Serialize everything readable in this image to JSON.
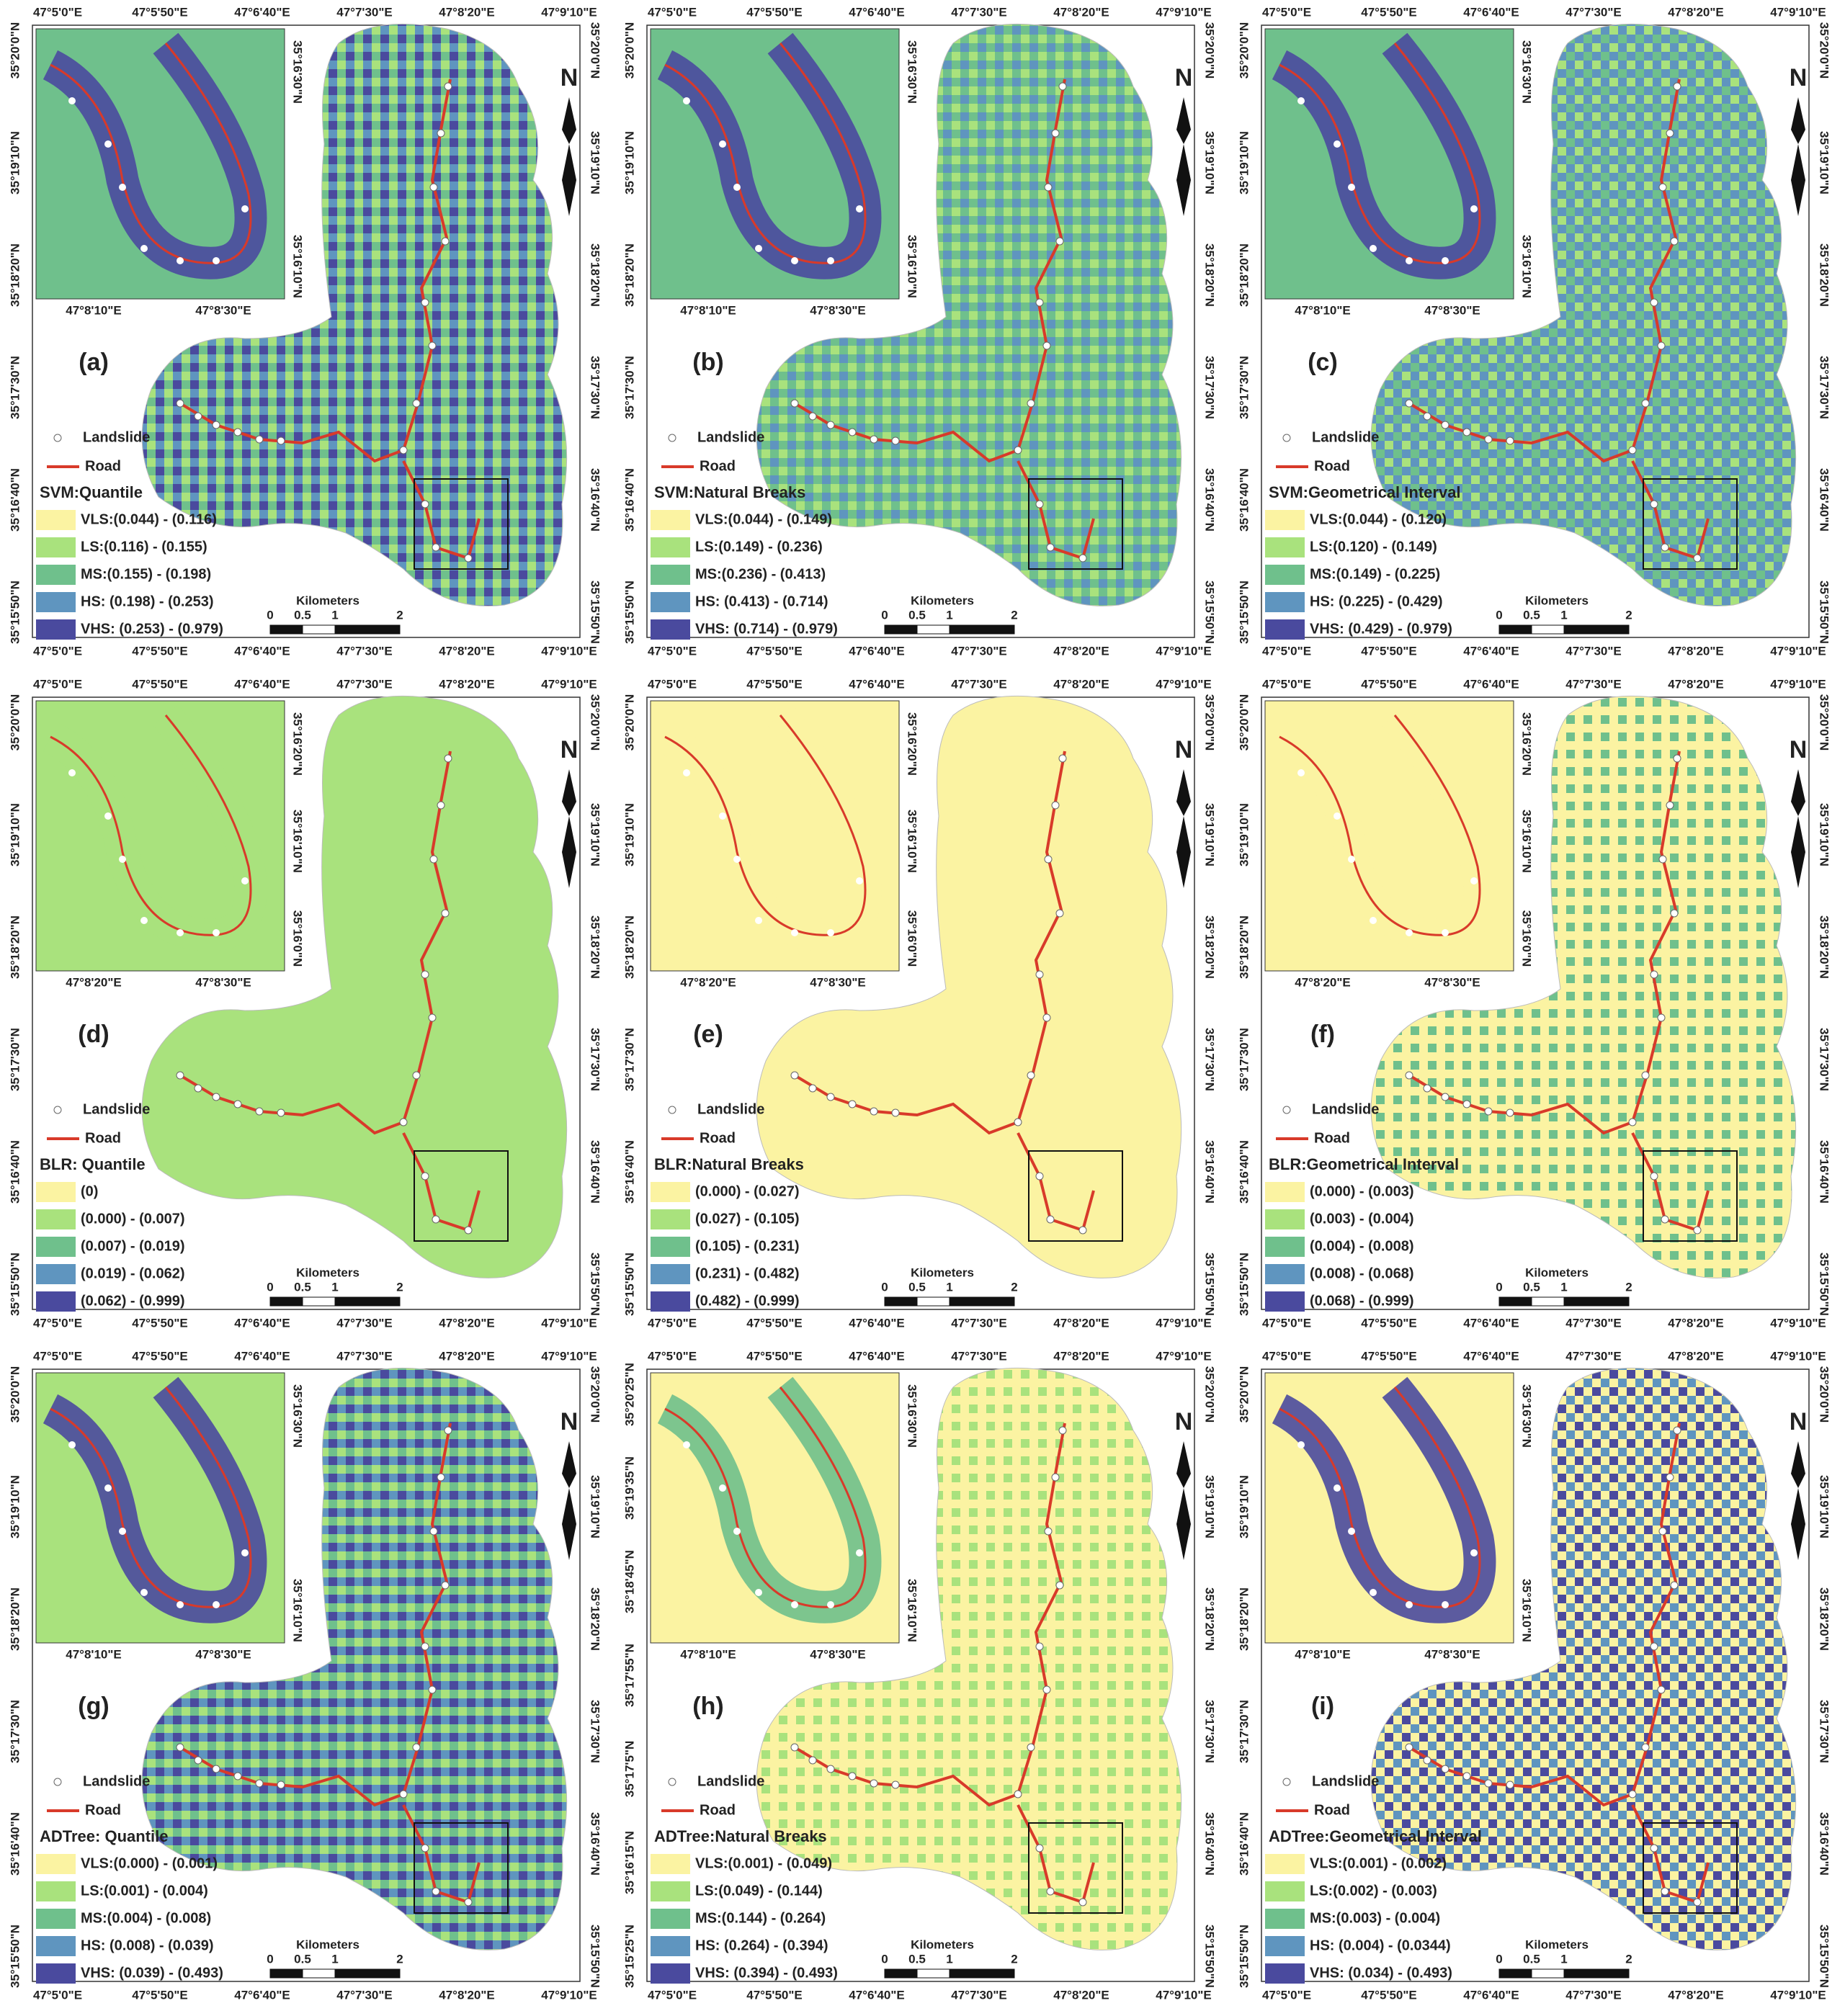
{
  "axes": {
    "x": [
      "47°5'0\"E",
      "47°5'50\"E",
      "47°6'40\"E",
      "47°7'30\"E",
      "47°8'20\"E",
      "47°9'10\"E"
    ],
    "y": [
      "35°20'0\"N",
      "35°19'10\"N",
      "35°18'20\"N",
      "35°17'30\"N",
      "35°16'40\"N",
      "35°15'50\"N"
    ]
  },
  "north": "N",
  "legend": {
    "landslide": "Landslide",
    "road": "Road"
  },
  "scale": {
    "title": "Kilometers",
    "ticks": [
      "0",
      "0.5",
      "1",
      "2"
    ]
  },
  "class_colors": [
    "#fbf3a2",
    "#a9e27d",
    "#6fc08c",
    "#5f95bf",
    "#4a4a9e"
  ],
  "panels": [
    {
      "label": "(a)",
      "title": "SVM:Quantile",
      "classes": [
        "VLS:(0.044) - (0.116)",
        "LS:(0.116) - (0.155)",
        "MS:(0.155) - (0.198)",
        "HS: (0.198) - (0.253)",
        "VHS: (0.253) - (0.979)"
      ],
      "inset_x": [
        "47°8'10\"E",
        "47°8'30\"E"
      ],
      "inset_y": [
        "35°16'30\"N",
        "35°16'10\"N"
      ]
    },
    {
      "label": "(b)",
      "title": "SVM:Natural Breaks",
      "classes": [
        "VLS:(0.044) - (0.149)",
        "LS:(0.149) - (0.236)",
        "MS:(0.236) - (0.413)",
        "HS: (0.413) - (0.714)",
        "VHS: (0.714) - (0.979)"
      ],
      "inset_x": [
        "47°8'10\"E",
        "47°8'30\"E"
      ],
      "inset_y": [
        "35°16'30\"N",
        "35°16'10\"N"
      ]
    },
    {
      "label": "(c)",
      "title": "SVM:Geometrical Interval",
      "classes": [
        "VLS:(0.044) - (0.120)",
        "LS:(0.120) - (0.149)",
        "MS:(0.149) - (0.225)",
        "HS: (0.225) - (0.429)",
        "VHS: (0.429) - (0.979)"
      ],
      "inset_x": [
        "47°8'10\"E",
        "47°8'30\"E"
      ],
      "inset_y": [
        "35°16'30\"N",
        "35°16'10\"N"
      ]
    },
    {
      "label": "(d)",
      "title": "BLR: Quantile",
      "classes": [
        "(0)",
        "(0.000) - (0.007)",
        "(0.007) - (0.019)",
        "(0.019) - (0.062)",
        "(0.062) - (0.999)"
      ],
      "inset_x": [
        "47°8'20\"E",
        "47°8'30\"E"
      ],
      "inset_y": [
        "35°16'20\"N",
        "35°16'10\"N",
        "35°16'0\"N"
      ]
    },
    {
      "label": "(e)",
      "title": "BLR:Natural Breaks",
      "classes": [
        "(0.000) - (0.027)",
        "(0.027) - (0.105)",
        "(0.105) - (0.231)",
        "(0.231) - (0.482)",
        "(0.482) - (0.999)"
      ],
      "inset_x": [
        "47°8'20\"E",
        "47°8'30\"E"
      ],
      "inset_y": [
        "35°16'20\"N",
        "35°16'10\"N",
        "35°16'0\"N"
      ]
    },
    {
      "label": "(f)",
      "title": "BLR:Geometrical Interval",
      "classes": [
        "(0.000) - (0.003)",
        "(0.003) - (0.004)",
        "(0.004) - (0.008)",
        "(0.008) - (0.068)",
        "(0.068) - (0.999)"
      ],
      "inset_x": [
        "47°8'20\"E",
        "47°8'30\"E"
      ],
      "inset_y": [
        "35°16'20\"N",
        "35°16'10\"N",
        "35°16'0\"N"
      ]
    },
    {
      "label": "(g)",
      "title": "ADTree: Quantile",
      "classes": [
        "VLS:(0.000) - (0.001)",
        "LS:(0.001) - (0.004)",
        "MS:(0.004) - (0.008)",
        "HS: (0.008) - (0.039)",
        "VHS: (0.039) - (0.493)"
      ],
      "inset_x": [
        "47°8'10\"E",
        "47°8'30\"E"
      ],
      "inset_y": [
        "35°16'30\"N",
        "35°16'10\"N"
      ]
    },
    {
      "label": "(h)",
      "title": "ADTree:Natural Breaks",
      "classes": [
        "VLS:(0.001) - (0.049)",
        "LS:(0.049) - (0.144)",
        "MS:(0.144) - (0.264)",
        "HS: (0.264) - (0.394)",
        "VHS: (0.394) - (0.493)"
      ],
      "inset_x": [
        "47°8'10\"E",
        "47°8'30\"E"
      ],
      "inset_y": [
        "35°16'30\"N",
        "35°16'10\"N"
      ],
      "left_y": [
        "35°20'25\"N",
        "35°19'35\"N",
        "35°18'45\"N",
        "35°17'55\"N",
        "35°17'5\"N",
        "35°16'15\"N",
        "35°15'25\"N"
      ]
    },
    {
      "label": "(i)",
      "title": "ADTree:Geometrical Interval",
      "classes": [
        "VLS:(0.001) - (0.002)",
        "LS:(0.002) - (0.003)",
        "MS:(0.003) - (0.004)",
        "HS: (0.004) - (0.0344)",
        "VHS: (0.034) - (0.493)"
      ],
      "inset_x": [
        "47°8'10\"E",
        "47°8'30\"E"
      ],
      "inset_y": [
        "35°16'30\"N",
        "35°16'10\"N"
      ]
    }
  ]
}
